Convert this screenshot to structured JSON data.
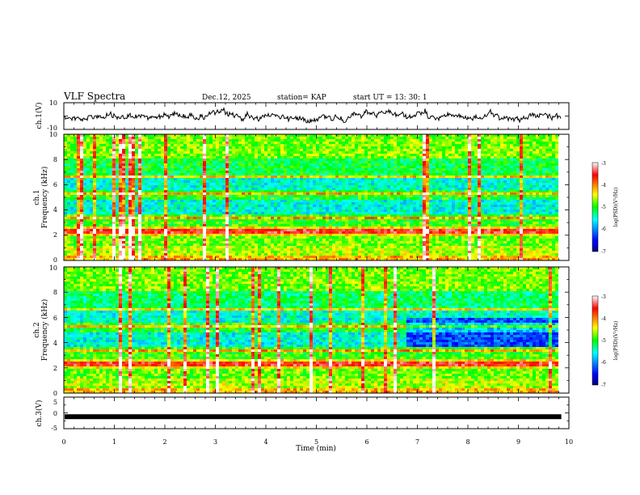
{
  "header": {
    "title": "VLF Spectra",
    "date": "Dec.12, 2025",
    "station": "station= KAP",
    "start": "start  UT  =   13: 30: 1"
  },
  "chart_data": [
    {
      "type": "line",
      "ylabel": "ch.1(V)",
      "ylim": [
        -10,
        10
      ],
      "ytick_labels": [
        "10",
        "-10"
      ],
      "xlim": [
        0,
        10
      ],
      "description_of_trace": "continuous noisy waveform about 0 V spanning 0 to 9.85 min",
      "x_end": 9.85
    },
    {
      "type": "heatmap",
      "ylabel_line1": "ch.1",
      "ylabel_line2": "Frequency  (kHz)",
      "ylim": [
        0,
        10
      ],
      "ytick_labels": [
        "0",
        "2",
        "4",
        "6",
        "8",
        "10"
      ],
      "xlim": [
        0,
        10
      ],
      "x_end": 9.85,
      "colorbar": {
        "label": "log(PSD)(V²/Hz)",
        "range": [
          -7,
          -3
        ],
        "tick_labels": [
          "-3",
          "-4",
          "-5",
          "-6",
          "-7"
        ]
      }
    },
    {
      "type": "heatmap",
      "ylabel_line1": "ch.2",
      "ylabel_line2": "Frequency  (kHz)",
      "ylim": [
        0,
        10
      ],
      "ytick_labels": [
        "0",
        "2",
        "4",
        "6",
        "8",
        "10"
      ],
      "xlim": [
        0,
        10
      ],
      "x_end": 9.85,
      "colorbar": {
        "label": "log(PSD)(V²/Hz)",
        "range": [
          -7,
          -3
        ],
        "tick_labels": [
          "-3",
          "-4",
          "-5",
          "-6",
          "-7"
        ]
      }
    },
    {
      "type": "line",
      "ylabel": "ch.3(V)",
      "ylim": [
        -5,
        5
      ],
      "ytick_labels": [
        "5",
        "0",
        "-5"
      ],
      "xlim": [
        0,
        10
      ],
      "x_end": 9.85,
      "level": -1.2,
      "xlabel": "Time  (min)",
      "xtick_labels": [
        "0",
        "1",
        "2",
        "3",
        "4",
        "5",
        "6",
        "7",
        "8",
        "9",
        "10"
      ]
    }
  ]
}
